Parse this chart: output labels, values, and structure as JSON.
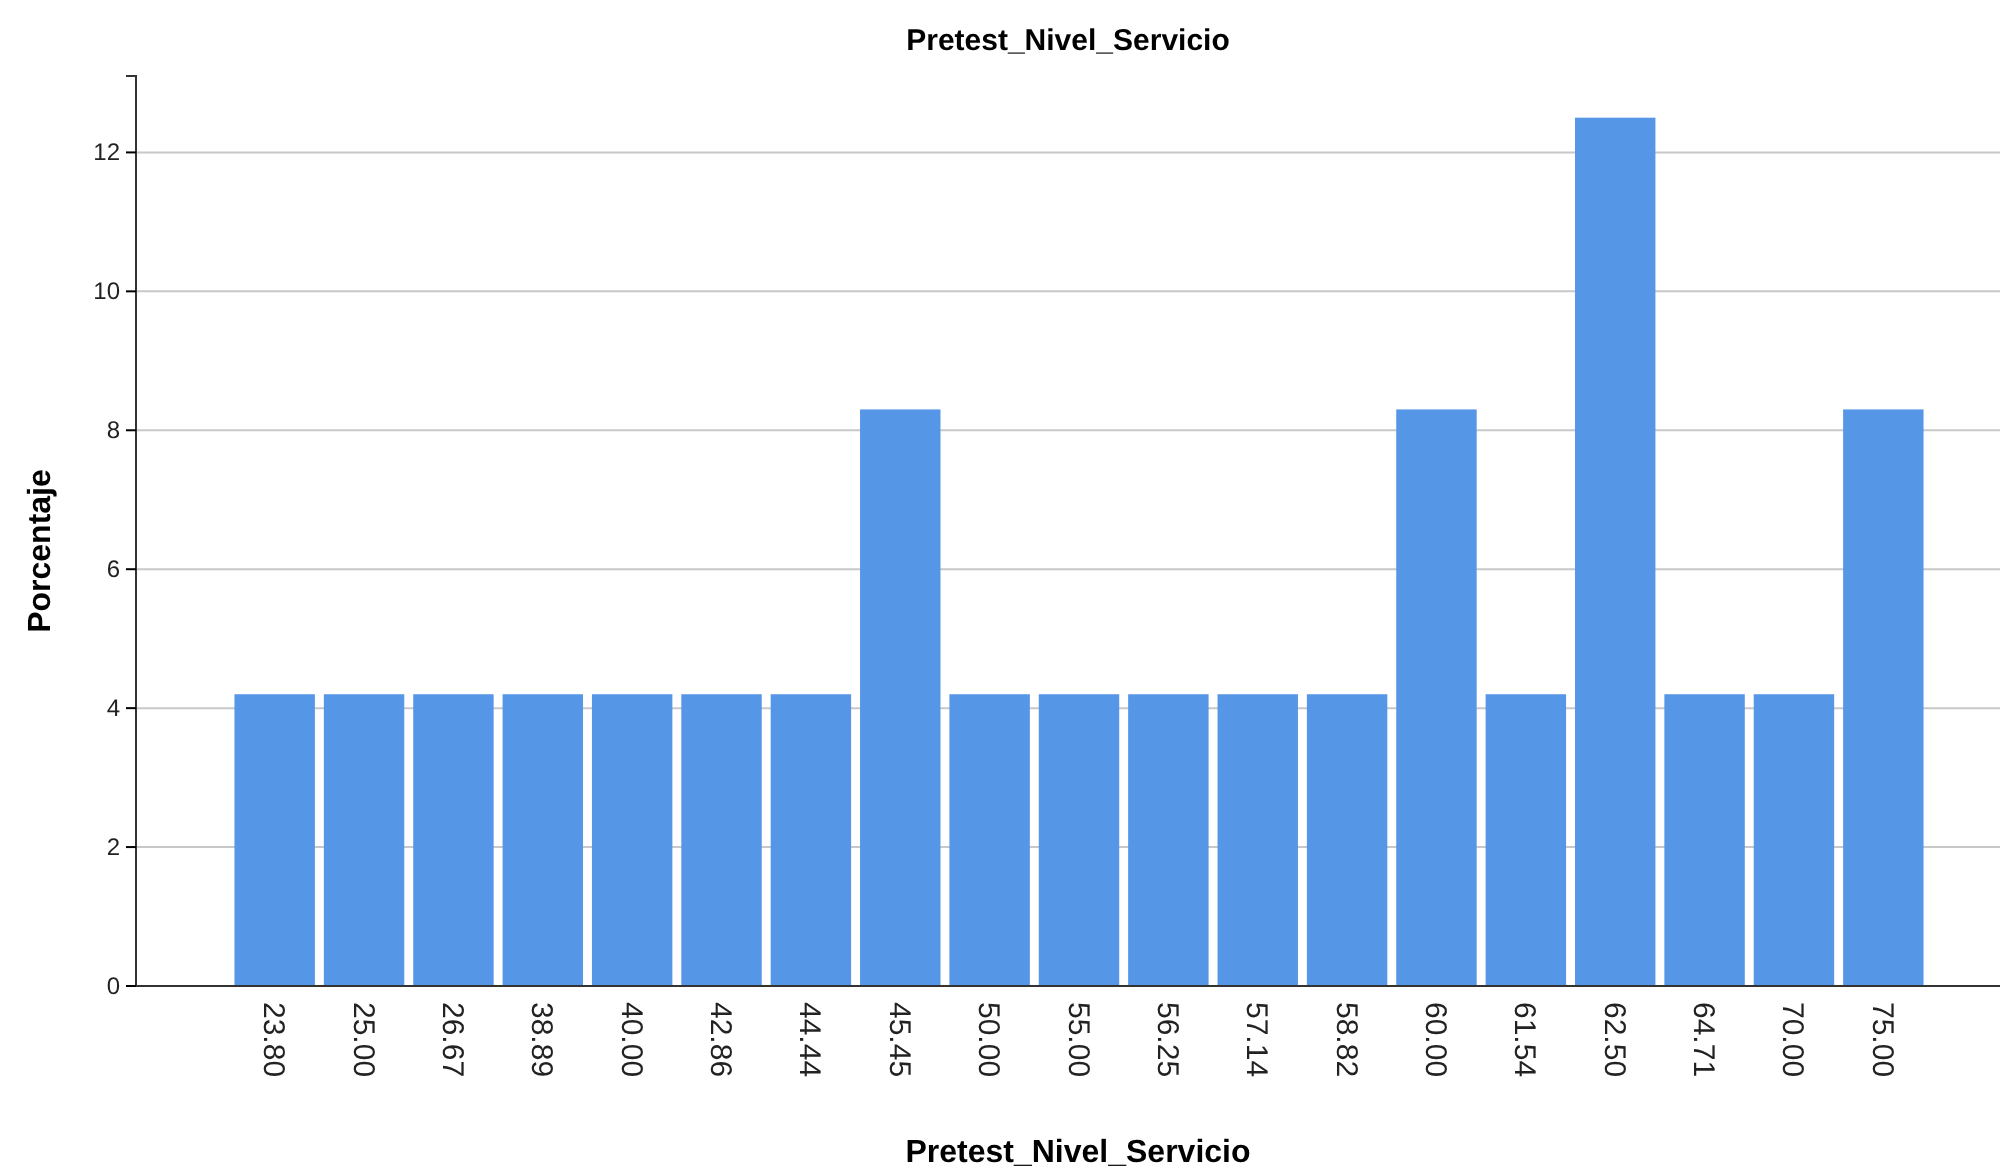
{
  "chart_data": {
    "type": "bar",
    "title": "Pretest_Nivel_Servicio",
    "xlabel": "Pretest_Nivel_Servicio",
    "ylabel": "Porcentaje",
    "categories": [
      "23.80",
      "25.00",
      "26.67",
      "38.89",
      "40.00",
      "42.86",
      "44.44",
      "45.45",
      "50.00",
      "55.00",
      "56.25",
      "57.14",
      "58.82",
      "60.00",
      "61.54",
      "62.50",
      "64.71",
      "70.00",
      "75.00"
    ],
    "values": [
      4.2,
      4.2,
      4.2,
      4.2,
      4.2,
      4.2,
      4.2,
      8.3,
      4.2,
      4.2,
      4.2,
      4.2,
      4.2,
      8.3,
      4.2,
      12.5,
      4.2,
      4.2,
      8.3
    ],
    "color": "#5596e6",
    "ylim": [
      0,
      13.1
    ],
    "yticks": [
      0,
      2,
      4,
      6,
      8,
      10,
      12
    ],
    "grid": "y"
  }
}
